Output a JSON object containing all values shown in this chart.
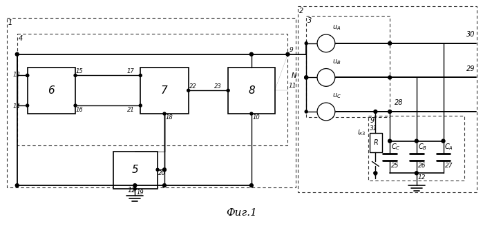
{
  "fig_width": 6.99,
  "fig_height": 3.28,
  "dpi": 100,
  "bg_color": "#ffffff",
  "caption": "Фиг.1"
}
